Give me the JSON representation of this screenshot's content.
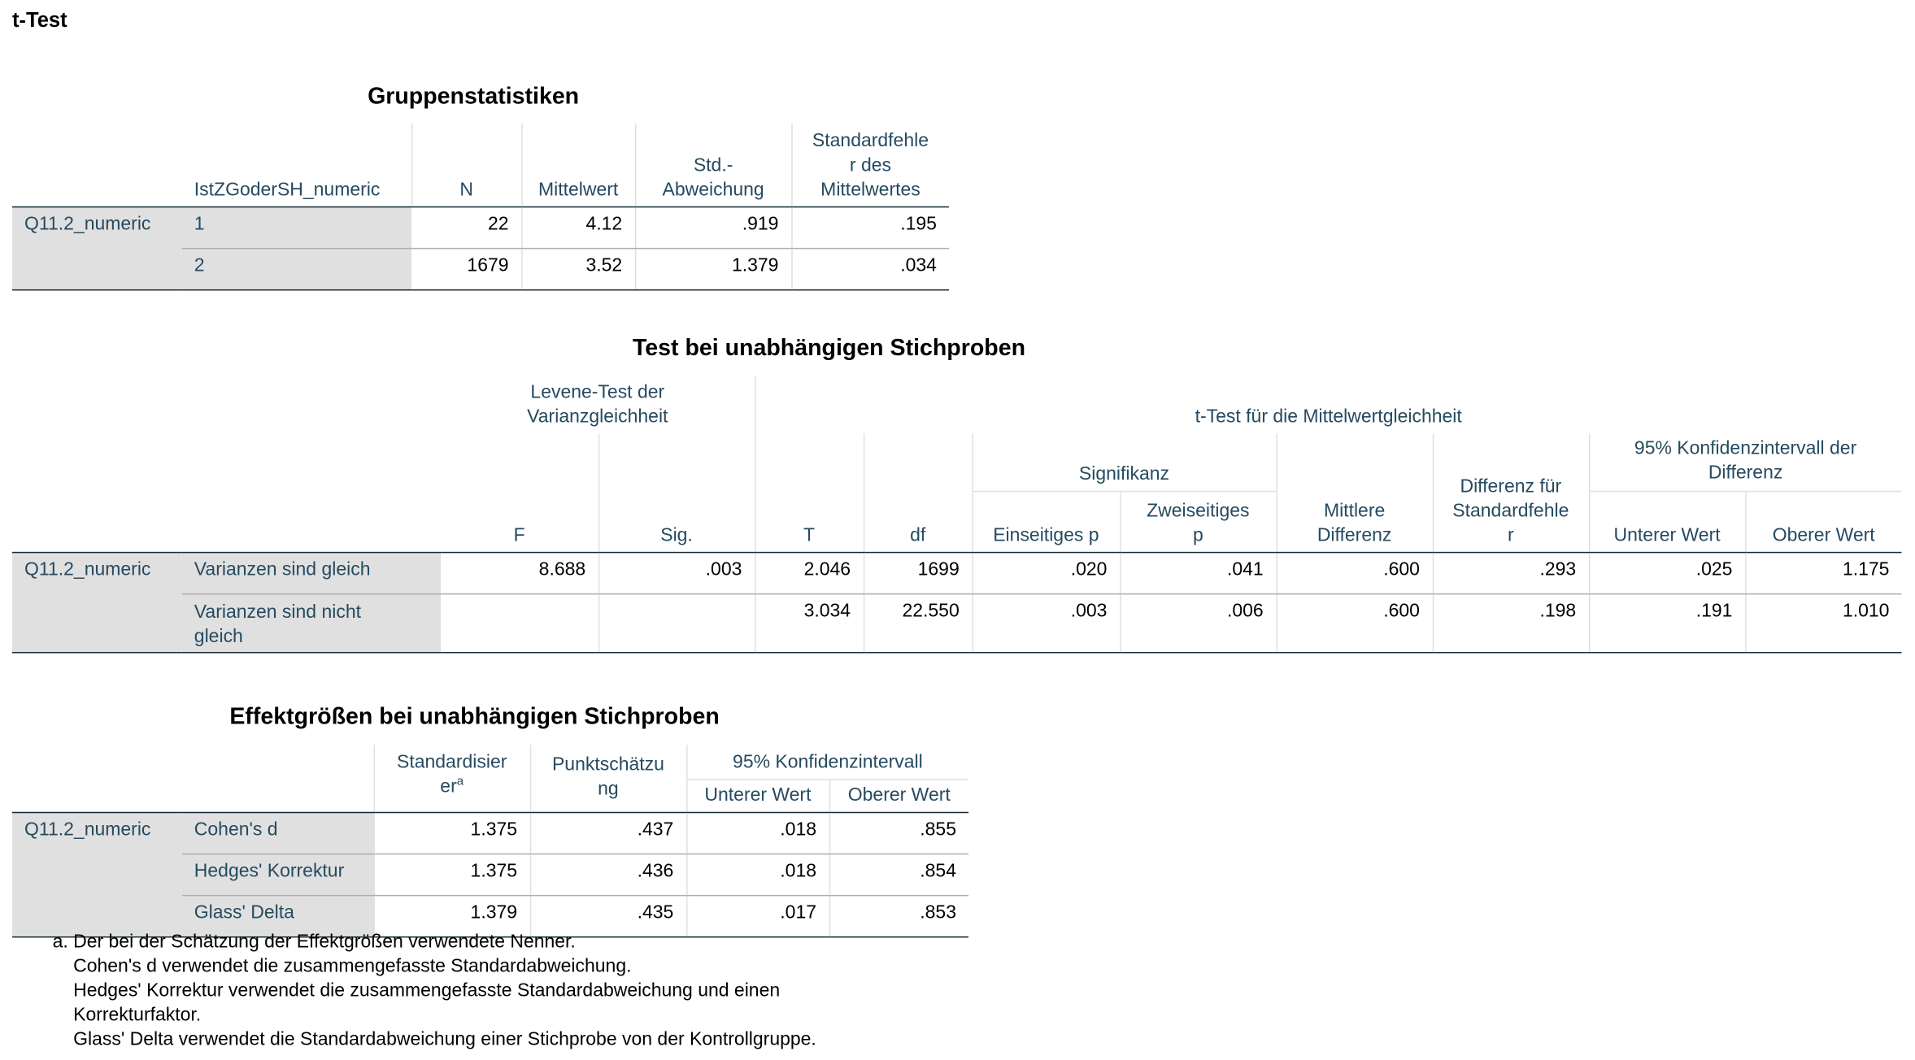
{
  "page_title": "t-Test",
  "group_stats": {
    "title": "Gruppenstatistiken",
    "headers": {
      "group_var": "IstZGoderSH_numeric",
      "n": "N",
      "mean": "Mittelwert",
      "sd": "Std.-\nAbweichung",
      "se": "Standardfehle\nr des\nMittelwertes"
    },
    "variable": "Q11.2_numeric",
    "rows": [
      {
        "group": "1",
        "n": "22",
        "mean": "4.12",
        "sd": ".919",
        "se": ".195"
      },
      {
        "group": "2",
        "n": "1679",
        "mean": "3.52",
        "sd": "1.379",
        "se": ".034"
      }
    ]
  },
  "ttest": {
    "title": "Test bei unabhängigen Stichproben",
    "levene_header": "Levene-Test der\nVarianzgleichheit",
    "ttest_header": "t-Test für die Mittelwertgleichheit",
    "signif_header": "Signifikanz",
    "ci_header": "95% Konfidenzintervall der\nDifferenz",
    "cols": {
      "f": "F",
      "sig": "Sig.",
      "t": "T",
      "df": "df",
      "one_p": "Einseitiges p",
      "two_p": "Zweiseitiges\np",
      "mean_diff": "Mittlere\nDifferenz",
      "se_diff": "Differenz für\nStandardfehle\nr",
      "lower": "Unterer Wert",
      "upper": "Oberer Wert"
    },
    "variable": "Q11.2_numeric",
    "rows": [
      {
        "label": "Varianzen sind gleich",
        "f": "8.688",
        "sig": ".003",
        "t": "2.046",
        "df": "1699",
        "one_p": ".020",
        "two_p": ".041",
        "mean_diff": ".600",
        "se_diff": ".293",
        "lower": ".025",
        "upper": "1.175"
      },
      {
        "label": "Varianzen sind nicht\ngleich",
        "f": "",
        "sig": "",
        "t": "3.034",
        "df": "22.550",
        "one_p": ".003",
        "two_p": ".006",
        "mean_diff": ".600",
        "se_diff": ".198",
        "lower": ".191",
        "upper": "1.010"
      }
    ]
  },
  "effect": {
    "title": "Effektgrößen bei unabhängigen Stichproben",
    "cols": {
      "std": "Standardisier\ner",
      "std_sup": "a",
      "point": "Punktschätzu\nng",
      "ci": "95% Konfidenzintervall",
      "lower": "Unterer Wert",
      "upper": "Oberer Wert"
    },
    "variable": "Q11.2_numeric",
    "rows": [
      {
        "label": "Cohen's d",
        "std": "1.375",
        "point": ".437",
        "lower": ".018",
        "upper": ".855"
      },
      {
        "label": "Hedges' Korrektur",
        "std": "1.375",
        "point": ".436",
        "lower": ".018",
        "upper": ".854"
      },
      {
        "label": "Glass' Delta",
        "std": "1.379",
        "point": ".435",
        "lower": ".017",
        "upper": ".853"
      }
    ]
  },
  "footnote": {
    "lines": [
      "a. Der bei der Schätzung der Effektgrößen verwendete Nenner.",
      "Cohen's d verwendet die zusammengefasste Standardabweichung.",
      "Hedges' Korrektur verwendet die zusammengefasste Standardabweichung und einen",
      "Korrekturfaktor.",
      "Glass' Delta verwendet die Standardabweichung einer Stichprobe von der Kontrollgruppe."
    ]
  }
}
